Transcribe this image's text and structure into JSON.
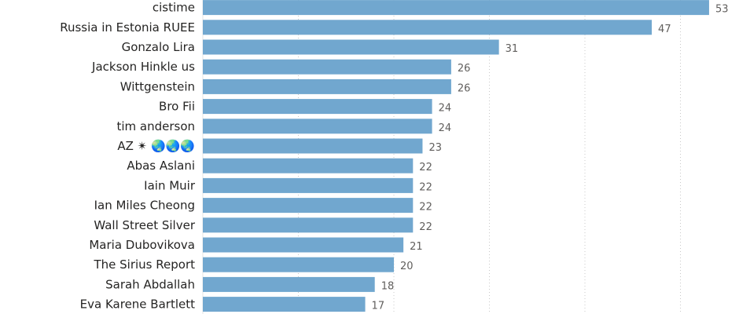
{
  "chart_data": {
    "type": "bar",
    "orientation": "horizontal",
    "categories": [
      "cistime",
      "Russia in Estonia RUEE",
      "Gonzalo Lira",
      "Jackson Hinkle us",
      "Wittgenstein",
      "Bro Fii",
      "tim anderson",
      "AZ ✴ 🌏🌏🌏",
      "Abas Aslani",
      "Iain Muir",
      "Ian Miles Cheong",
      "Wall Street Silver",
      "Maria Dubovikova",
      "The Sirius Report",
      "Sarah Abdallah",
      "Eva Karene Bartlett"
    ],
    "values": [
      53,
      47,
      31,
      26,
      26,
      24,
      24,
      23,
      22,
      22,
      22,
      22,
      21,
      20,
      18,
      17
    ],
    "xlim": [
      0,
      55
    ],
    "grid": true,
    "bar_color": "#71a7cf",
    "data_labels": true
  }
}
